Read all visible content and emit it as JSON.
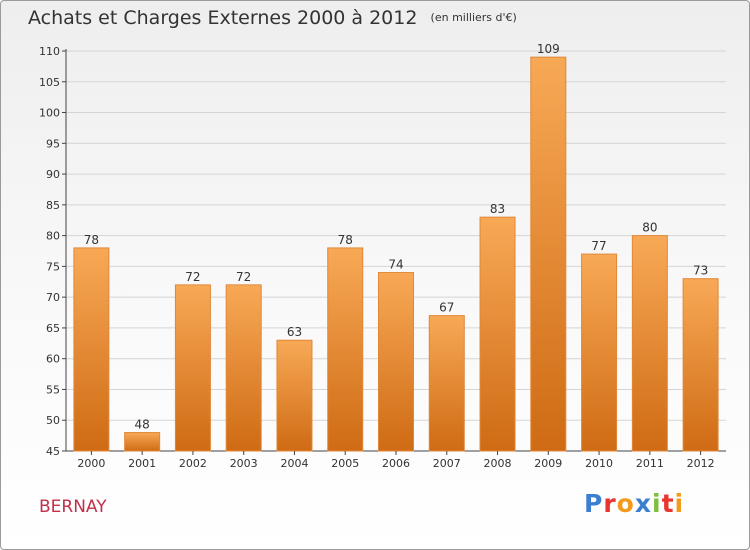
{
  "header": {
    "title": "Achats et Charges Externes 2000 à 2012",
    "subtitle": "(en milliers d'€)"
  },
  "footer": {
    "city": "BERNAY",
    "logo_text": "Proxiti",
    "logo_colors": [
      "#3a7fd0",
      "#e8352e",
      "#f39a1c",
      "#3a7fd0",
      "#7bbf3b",
      "#e8352e",
      "#f39a1c"
    ]
  },
  "colors": {
    "bar_top": "#f8a956",
    "bar_bottom": "#cf6b14",
    "bar_edge": "#e0883a",
    "grid": "#d5d5d5",
    "axis": "#444444",
    "text": "#333333"
  },
  "chart_data": {
    "type": "bar",
    "categories": [
      "2000",
      "2001",
      "2002",
      "2003",
      "2004",
      "2005",
      "2006",
      "2007",
      "2008",
      "2009",
      "2010",
      "2011",
      "2012"
    ],
    "values": [
      78,
      48,
      72,
      72,
      63,
      78,
      74,
      67,
      83,
      109,
      77,
      80,
      73
    ],
    "ylim": [
      45,
      110
    ],
    "yticks": [
      45,
      50,
      55,
      60,
      65,
      70,
      75,
      80,
      85,
      90,
      95,
      100,
      105,
      110
    ],
    "grid": true,
    "data_labels": true
  }
}
